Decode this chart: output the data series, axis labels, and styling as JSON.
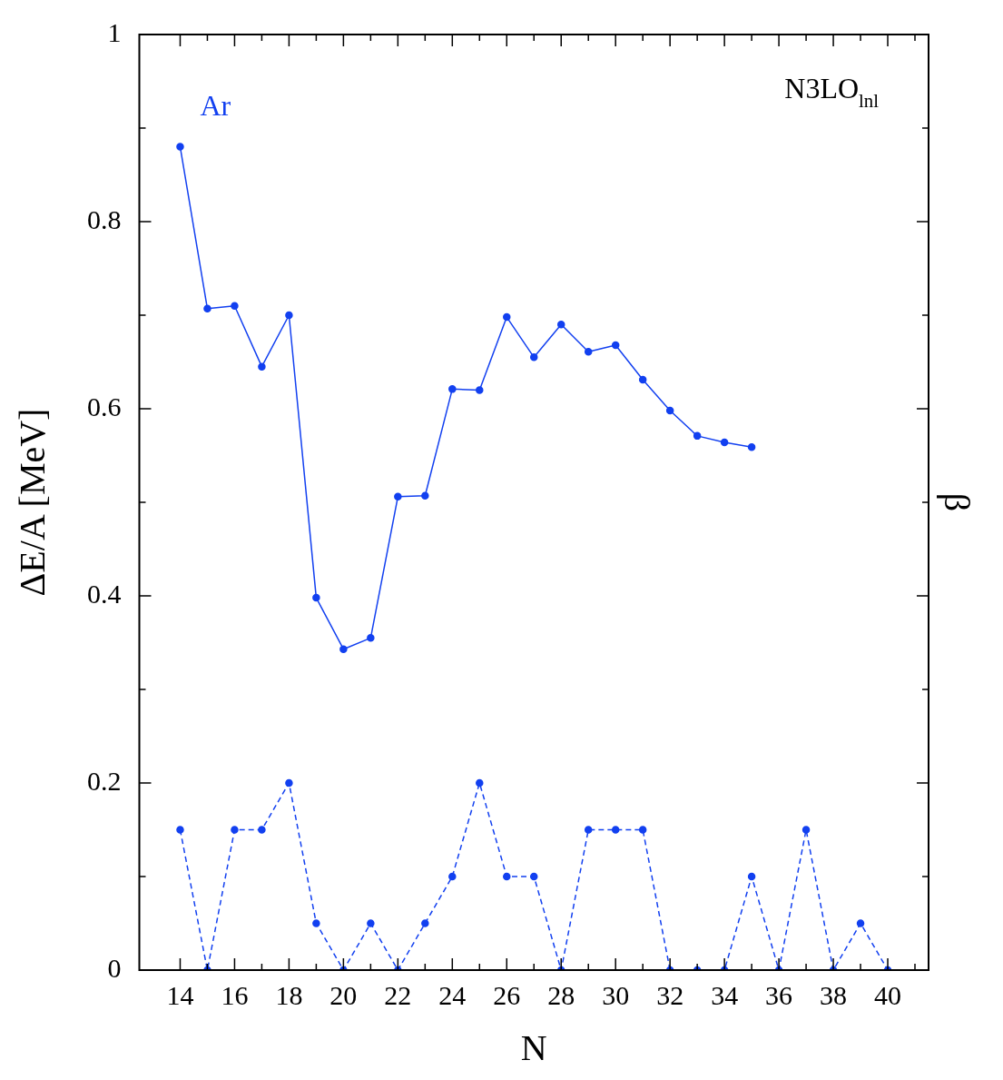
{
  "chart_data": {
    "type": "line",
    "xlabel": "N",
    "ylabel": "ΔE/A [MeV]",
    "y2label": "β",
    "x": [
      14,
      15,
      16,
      17,
      18,
      19,
      20,
      21,
      22,
      23,
      24,
      25,
      26,
      27,
      28,
      29,
      30,
      31,
      32,
      33,
      34,
      35,
      36,
      37,
      38,
      39,
      40
    ],
    "series": [
      {
        "name": "Ar",
        "color": "#1240f0",
        "line_style": "solid",
        "x": [
          14,
          15,
          16,
          17,
          18,
          19,
          20,
          21,
          22,
          23,
          24,
          25,
          26,
          27,
          28,
          29,
          30,
          31,
          32,
          33,
          34,
          35
        ],
        "values": [
          0.88,
          0.707,
          0.71,
          0.645,
          0.7,
          0.398,
          0.343,
          0.355,
          0.506,
          0.507,
          0.621,
          0.62,
          0.698,
          0.655,
          0.69,
          0.661,
          0.668,
          0.631,
          0.598,
          0.571,
          0.564,
          0.559
        ]
      },
      {
        "color": "#1240f0",
        "line_style": "dashed",
        "values": [
          0.15,
          0,
          0.15,
          0.15,
          0.2,
          0.05,
          0,
          0.05,
          0,
          0.05,
          0.1,
          0.2,
          0.1,
          0.1,
          0,
          0.15,
          0.15,
          0.15,
          0,
          0,
          0,
          0.1,
          0,
          0.15,
          0,
          0.05,
          0
        ]
      }
    ],
    "xlim": [
      12.5,
      41.5
    ],
    "xticks": [
      14,
      {
        "value": 15,
        "label": null
      },
      16,
      {
        "value": 17,
        "label": null
      },
      18,
      {
        "value": 19,
        "label": null
      },
      20,
      {
        "value": 21,
        "label": null
      },
      22,
      {
        "value": 23,
        "label": null
      },
      24,
      {
        "value": 25,
        "label": null
      },
      26,
      {
        "value": 27,
        "label": null
      },
      28,
      {
        "value": 29,
        "label": null
      },
      30,
      {
        "value": 31,
        "label": null
      },
      32,
      {
        "value": 33,
        "label": null
      },
      34,
      {
        "value": 35,
        "label": null
      },
      36,
      {
        "value": 37,
        "label": null
      },
      38,
      {
        "value": 39,
        "label": null
      },
      40,
      {
        "value": 41,
        "label": null
      }
    ],
    "ylim": [
      0,
      1
    ],
    "yticks": [
      0,
      {
        "value": 0.1,
        "label": null
      },
      0.2,
      {
        "value": 0.3,
        "label": null
      },
      0.4,
      {
        "value": 0.5,
        "label": null
      },
      0.6,
      {
        "value": 0.7,
        "label": null
      },
      0.8,
      {
        "value": 0.9,
        "label": null
      },
      1
    ],
    "annotations": [
      "N3LO$_{lnl}$"
    ],
    "grid": false,
    "legend": false,
    "marker": "circle"
  }
}
